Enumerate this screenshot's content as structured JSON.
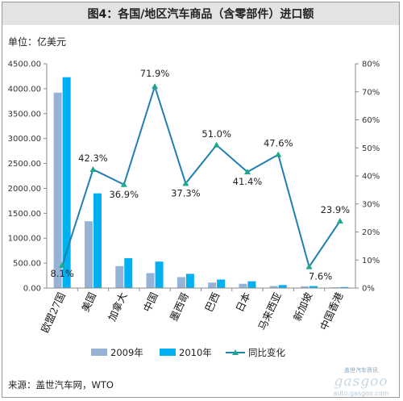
{
  "header": {
    "title": "图4：各国/地区汽车商品（含零部件）进口额"
  },
  "unit_label": "单位：亿美元",
  "source_label": "来源：盖世汽车网，WTO",
  "watermark": {
    "brand": "gasgoo",
    "url": "auto.gasgoo.com",
    "tagline": "盖世汽车资讯"
  },
  "colors": {
    "series_2009": "#95B3D7",
    "series_2010": "#00B0F0",
    "yoy_line": "#1F7FB3",
    "yoy_marker": "#1FA88A"
  },
  "chart_data": {
    "type": "bar",
    "title": "图4：各国/地区汽车商品（含零部件）进口额",
    "categories": [
      "欧盟27国",
      "美国",
      "加拿大",
      "中国",
      "墨西哥",
      "巴西",
      "日本",
      "马来西亚",
      "新加坡",
      "中国香港"
    ],
    "series": [
      {
        "name": "2009年",
        "type": "bar",
        "axis": "left",
        "values": [
          3920,
          1340,
          440,
          300,
          220,
          110,
          85,
          40,
          35,
          15
        ]
      },
      {
        "name": "2010年",
        "type": "bar",
        "axis": "left",
        "values": [
          4230,
          1900,
          600,
          530,
          285,
          170,
          135,
          60,
          40,
          20
        ]
      },
      {
        "name": "同比变化",
        "type": "line",
        "axis": "right",
        "values": [
          8.1,
          42.3,
          36.9,
          71.9,
          37.3,
          51.0,
          41.4,
          47.6,
          7.6,
          23.9
        ]
      }
    ],
    "data_labels": [
      "8.1%",
      "42.3%",
      "36.9%",
      "71.9%",
      "37.3%",
      "51.0%",
      "41.4%",
      "47.6%",
      "7.6%",
      "23.9%"
    ],
    "ylabel": "单位：亿美元",
    "ylim": [
      0,
      4500
    ],
    "y_ticks": [
      "0.00",
      "500.00",
      "1000.00",
      "1500.00",
      "2000.00",
      "2500.00",
      "3000.00",
      "3500.00",
      "4000.00",
      "4500.00"
    ],
    "y2lim": [
      0,
      80
    ],
    "y2_ticks": [
      "0%",
      "10%",
      "20%",
      "30%",
      "40%",
      "50%",
      "60%",
      "70%",
      "80%"
    ],
    "grid": false,
    "legend_position": "bottom"
  }
}
